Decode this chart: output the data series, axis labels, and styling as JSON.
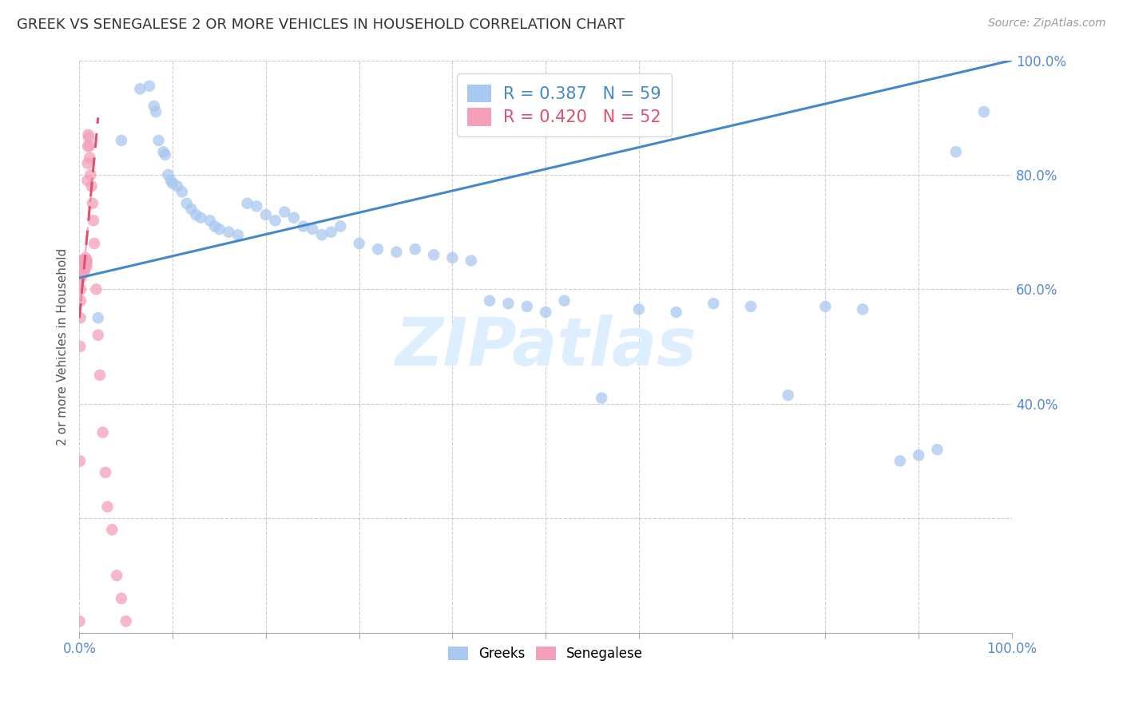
{
  "title": "GREEK VS SENEGALESE 2 OR MORE VEHICLES IN HOUSEHOLD CORRELATION CHART",
  "source": "Source: ZipAtlas.com",
  "ylabel": "2 or more Vehicles in Household",
  "greek_R": 0.387,
  "greek_N": 59,
  "senegalese_R": 0.42,
  "senegalese_N": 52,
  "greek_color": "#a8c8f0",
  "senegalese_color": "#f4a0b8",
  "trend_greek_color": "#4488cc",
  "trend_senegalese_color": "#e05070",
  "watermark_color": "#ddeeff",
  "greek_x": [
    2.0,
    4.5,
    6.5,
    7.5,
    8.0,
    8.2,
    8.5,
    9.0,
    9.2,
    9.5,
    9.8,
    10.0,
    10.5,
    11.0,
    11.5,
    12.0,
    12.5,
    13.0,
    14.0,
    14.5,
    15.0,
    16.0,
    17.0,
    18.0,
    19.0,
    20.0,
    21.0,
    22.0,
    23.0,
    24.0,
    25.0,
    26.0,
    27.0,
    28.0,
    30.0,
    32.0,
    34.0,
    36.0,
    38.0,
    40.0,
    42.0,
    44.0,
    46.0,
    48.0,
    50.0,
    52.0,
    56.0,
    60.0,
    64.0,
    68.0,
    72.0,
    76.0,
    80.0,
    84.0,
    88.0,
    90.0,
    92.0,
    94.0,
    97.0
  ],
  "greek_y": [
    55.0,
    86.0,
    95.0,
    95.5,
    92.0,
    91.0,
    86.0,
    84.0,
    83.5,
    80.0,
    79.0,
    78.5,
    78.0,
    77.0,
    75.0,
    74.0,
    73.0,
    72.5,
    72.0,
    71.0,
    70.5,
    70.0,
    69.5,
    75.0,
    74.5,
    73.0,
    72.0,
    73.5,
    72.5,
    71.0,
    70.5,
    69.5,
    70.0,
    71.0,
    68.0,
    67.0,
    66.5,
    67.0,
    66.0,
    65.5,
    65.0,
    58.0,
    57.5,
    57.0,
    56.0,
    58.0,
    41.0,
    56.5,
    56.0,
    57.5,
    57.0,
    41.5,
    57.0,
    56.5,
    30.0,
    31.0,
    32.0,
    84.0,
    91.0
  ],
  "senegalese_x": [
    0.02,
    0.05,
    0.08,
    0.1,
    0.12,
    0.15,
    0.18,
    0.2,
    0.22,
    0.25,
    0.28,
    0.3,
    0.33,
    0.35,
    0.38,
    0.4,
    0.42,
    0.45,
    0.48,
    0.5,
    0.52,
    0.55,
    0.58,
    0.6,
    0.65,
    0.68,
    0.7,
    0.75,
    0.78,
    0.8,
    0.85,
    0.88,
    0.9,
    0.95,
    1.0,
    1.05,
    1.1,
    1.2,
    1.3,
    1.4,
    1.5,
    1.6,
    1.8,
    2.0,
    2.2,
    2.5,
    2.8,
    3.0,
    3.5,
    4.0,
    4.5,
    5.0
  ],
  "senegalese_y": [
    2.0,
    30.0,
    50.0,
    55.0,
    58.0,
    60.0,
    62.0,
    62.5,
    63.0,
    63.5,
    64.0,
    64.0,
    64.5,
    65.0,
    65.0,
    64.5,
    64.0,
    63.5,
    64.0,
    64.5,
    63.0,
    63.5,
    64.0,
    65.0,
    65.5,
    64.5,
    65.0,
    64.5,
    64.0,
    65.0,
    79.0,
    82.0,
    85.0,
    87.0,
    86.5,
    85.0,
    83.0,
    80.0,
    78.0,
    75.0,
    72.0,
    68.0,
    60.0,
    52.0,
    45.0,
    35.0,
    28.0,
    22.0,
    18.0,
    10.0,
    6.0,
    2.0
  ],
  "greek_trend_x0": 0.0,
  "greek_trend_y0": 62.0,
  "greek_trend_x1": 100.0,
  "greek_trend_y1": 100.0,
  "senegalese_trend_x0": 0.0,
  "senegalese_trend_y0": 55.0,
  "senegalese_trend_x1": 2.0,
  "senegalese_trend_y1": 90.0,
  "xlim": [
    0,
    100
  ],
  "ylim": [
    0,
    100
  ],
  "yticks": [
    0,
    20,
    40,
    60,
    80,
    100
  ],
  "ytick_labels_right": [
    "",
    "",
    "40.0%",
    "60.0%",
    "80.0%",
    "100.0%"
  ],
  "xtick_left_label": "0.0%",
  "xtick_right_label": "100.0%"
}
